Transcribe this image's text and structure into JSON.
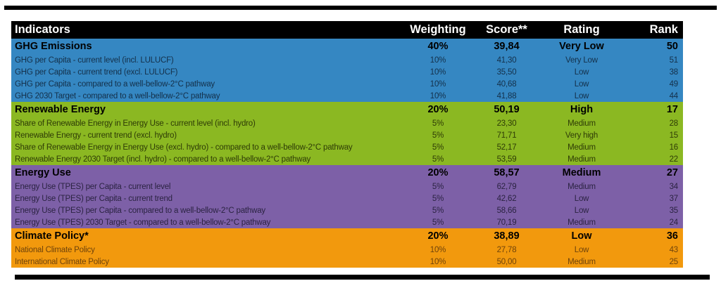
{
  "colors": {
    "header_bg": "#000000",
    "header_text": "#ffffff",
    "divider": "#000000",
    "ghg_blue": "#3587C2",
    "renewable_green": "#8BB822",
    "energy_purple": "#7D60A7",
    "policy_orange": "#F2990D"
  },
  "chart_data": {
    "type": "table",
    "columns": [
      "Indicators",
      "Weighting",
      "Score**",
      "Rating",
      "Rank"
    ],
    "sections": [
      {
        "name": "GHG Emissions",
        "color": "#3587C2",
        "weighting": "40%",
        "score": "39,84",
        "rating": "Very Low",
        "rank": "50",
        "rows": [
          {
            "indicator": "GHG per Capita - current level (incl. LULUCF)",
            "weighting": "10%",
            "score": "41,30",
            "rating": "Very Low",
            "rank": "51"
          },
          {
            "indicator": "GHG per Capita - current trend (excl. LULUCF)",
            "weighting": "10%",
            "score": "35,50",
            "rating": "Low",
            "rank": "38"
          },
          {
            "indicator": "GHG per Capita - compared to a well-bellow-2°C pathway",
            "weighting": "10%",
            "score": "40,68",
            "rating": "Low",
            "rank": "49"
          },
          {
            "indicator": "GHG 2030 Target - compared to a well-bellow-2°C pathway",
            "weighting": "10%",
            "score": "41,88",
            "rating": "Low",
            "rank": "44"
          }
        ]
      },
      {
        "name": "Renewable Energy",
        "color": "#8BB822",
        "weighting": "20%",
        "score": "50,19",
        "rating": "High",
        "rank": "17",
        "rows": [
          {
            "indicator": "Share of Renewable Energy in Energy Use - current level (incl. hydro)",
            "weighting": "5%",
            "score": "23,30",
            "rating": "Medium",
            "rank": "28"
          },
          {
            "indicator": "Renewable Energy - current trend (excl. hydro)",
            "weighting": "5%",
            "score": "71,71",
            "rating": "Very high",
            "rank": "15"
          },
          {
            "indicator": "Share of Renewable Energy in Energy Use (excl. hydro) - compared to a well-bellow-2°C pathway",
            "weighting": "5%",
            "score": "52,17",
            "rating": "Medium",
            "rank": "16"
          },
          {
            "indicator": "Renewable Energy 2030 Target (incl. hydro) - compared to a well-bellow-2°C pathway",
            "weighting": "5%",
            "score": "53,59",
            "rating": "Medium",
            "rank": "22"
          }
        ]
      },
      {
        "name": "Energy Use",
        "color": "#7D60A7",
        "weighting": "20%",
        "score": "58,57",
        "rating": "Medium",
        "rank": "27",
        "rows": [
          {
            "indicator": "Energy Use (TPES) per Capita - current level",
            "weighting": "5%",
            "score": "62,79",
            "rating": "Medium",
            "rank": "34"
          },
          {
            "indicator": "Energy Use (TPES) per Capita - current trend",
            "weighting": "5%",
            "score": "42,62",
            "rating": "Low",
            "rank": "37"
          },
          {
            "indicator": "Energy Use (TPES) per Capita - compared to a well-bellow-2°C pathway",
            "weighting": "5%",
            "score": "58,66",
            "rating": "Low",
            "rank": "35"
          },
          {
            "indicator": "Energy Use (TPES) 2030 Target - compared to a well-bellow-2°C pathway",
            "weighting": "5%",
            "score": "70,19",
            "rating": "Medium",
            "rank": "24"
          }
        ]
      },
      {
        "name": "Climate Policy*",
        "color": "#F2990D",
        "weighting": "20%",
        "score": "38,89",
        "rating": "Low",
        "rank": "36",
        "rows": [
          {
            "indicator": "National Climate Policy",
            "weighting": "10%",
            "score": "27,78",
            "rating": "Low",
            "rank": "43"
          },
          {
            "indicator": "International Climate Policy",
            "weighting": "10%",
            "score": "50,00",
            "rating": "Medium",
            "rank": "25"
          }
        ]
      }
    ]
  }
}
